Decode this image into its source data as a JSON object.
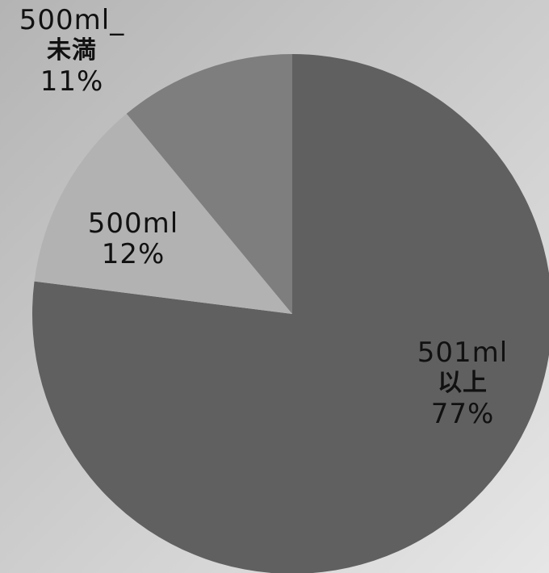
{
  "chart_data": {
    "type": "pie",
    "title": "",
    "start_angle_deg": 0,
    "direction": "clockwise",
    "slices": [
      {
        "label_top": "501ml",
        "label_mid": "以上",
        "percent_label": "77%",
        "value": 77,
        "color": "#606060"
      },
      {
        "label_top": "500ml",
        "label_mid": "",
        "percent_label": "12%",
        "value": 12,
        "color": "#b2b2b2"
      },
      {
        "label_top": "500ml_",
        "label_mid": "未満",
        "percent_label": "11%",
        "value": 11,
        "color": "#7e7e7e"
      }
    ]
  }
}
